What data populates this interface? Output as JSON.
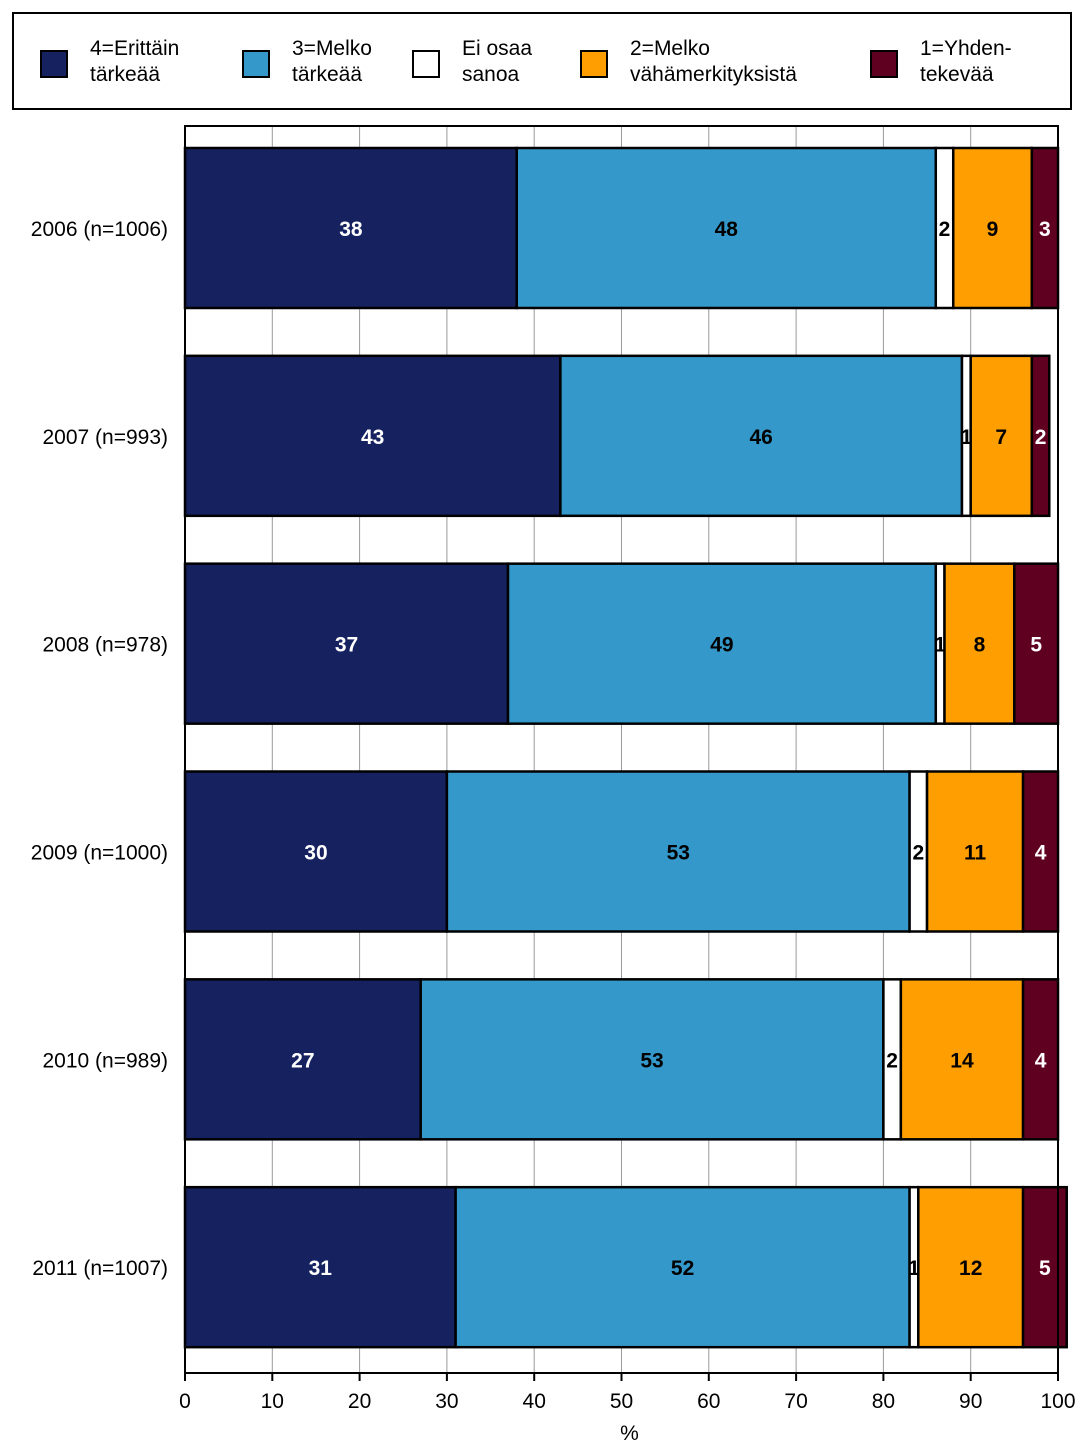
{
  "legend": [
    {
      "label": "4=Erittäin\ntärkeää",
      "color": "#162260"
    },
    {
      "label": "3=Melko\ntärkeää",
      "color": "#3598CA"
    },
    {
      "label": "Ei osaa\nsanoa",
      "color": "#FFFFFF"
    },
    {
      "label": "2=Melko\nvähämerkityksistä",
      "color": "#FF9E00"
    },
    {
      "label": "1=Yhden-\ntekevää",
      "color": "#600020"
    }
  ],
  "chart_data": {
    "type": "bar",
    "orientation": "horizontal",
    "stacked": true,
    "categories": [
      "2006 (n=1006)",
      "2007 (n=993)",
      "2008 (n=978)",
      "2009 (n=1000)",
      "2010 (n=989)",
      "2011 (n=1007)"
    ],
    "series": [
      {
        "name": "4=Erittäin tärkeää",
        "color": "#162260",
        "label_color": "#FFFFFF",
        "values": [
          38,
          43,
          37,
          30,
          27,
          31
        ]
      },
      {
        "name": "3=Melko tärkeää",
        "color": "#3598CA",
        "label_color": "#000000",
        "values": [
          48,
          46,
          49,
          53,
          53,
          52
        ]
      },
      {
        "name": "Ei osaa sanoa",
        "color": "#FFFFFF",
        "label_color": "#000000",
        "values": [
          2,
          1,
          1,
          2,
          2,
          1
        ]
      },
      {
        "name": "2=Melko vähämerkityksistä",
        "color": "#FF9E00",
        "label_color": "#000000",
        "values": [
          9,
          7,
          8,
          11,
          14,
          12
        ]
      },
      {
        "name": "1=Yhdentekevää",
        "color": "#600020",
        "label_color": "#FFFFFF",
        "values": [
          3,
          2,
          5,
          4,
          4,
          5
        ]
      }
    ],
    "xlabel": "%",
    "xlim": [
      0,
      100
    ],
    "xticks": [
      0,
      10,
      20,
      30,
      40,
      50,
      60,
      70,
      80,
      90,
      100
    ],
    "grid": true,
    "legend_position": "top"
  }
}
